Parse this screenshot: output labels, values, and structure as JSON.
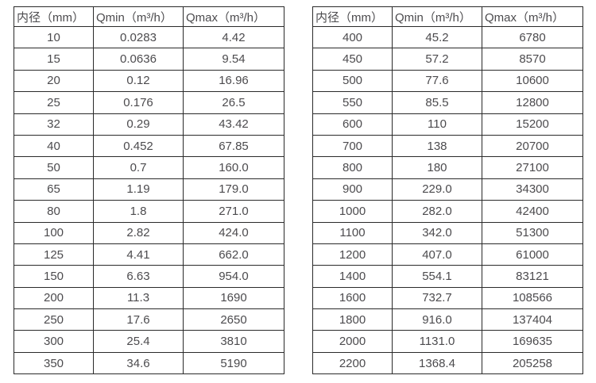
{
  "colors": {
    "background": "#ffffff",
    "border": "#2a2a2a",
    "text": "#4c4b4e"
  },
  "column_names": [
    "diameter",
    "qmin",
    "qmax"
  ],
  "tables": [
    {
      "headers": [
        "内径（mm）",
        "Qmin（m³/h）",
        "Qmax（m³/h）"
      ],
      "rows": [
        [
          "10",
          "0.0283",
          "4.42"
        ],
        [
          "15",
          "0.0636",
          "9.54"
        ],
        [
          "20",
          "0.12",
          "16.96"
        ],
        [
          "25",
          "0.176",
          "26.5"
        ],
        [
          "32",
          "0.29",
          "43.42"
        ],
        [
          "40",
          "0.452",
          "67.85"
        ],
        [
          "50",
          "0.7",
          "160.0"
        ],
        [
          "65",
          "1.19",
          "179.0"
        ],
        [
          "80",
          "1.8",
          "271.0"
        ],
        [
          "100",
          "2.82",
          "424.0"
        ],
        [
          "125",
          "4.41",
          "662.0"
        ],
        [
          "150",
          "6.63",
          "954.0"
        ],
        [
          "200",
          "11.3",
          "1690"
        ],
        [
          "250",
          "17.6",
          "2650"
        ],
        [
          "300",
          "25.4",
          "3810"
        ],
        [
          "350",
          "34.6",
          "5190"
        ]
      ]
    },
    {
      "headers": [
        "内径（mm）",
        "Qmin（m³/h）",
        "Qmax（m³/h）"
      ],
      "rows": [
        [
          "400",
          "45.2",
          "6780"
        ],
        [
          "450",
          "57.2",
          "8570"
        ],
        [
          "500",
          "77.6",
          "10600"
        ],
        [
          "550",
          "85.5",
          "12800"
        ],
        [
          "600",
          "110",
          "15200"
        ],
        [
          "700",
          "138",
          "20700"
        ],
        [
          "800",
          "180",
          "27100"
        ],
        [
          "900",
          "229.0",
          "34300"
        ],
        [
          "1000",
          "282.0",
          "42400"
        ],
        [
          "1100",
          "342.0",
          "51300"
        ],
        [
          "1200",
          "407.0",
          "61000"
        ],
        [
          "1400",
          "554.1",
          "83121"
        ],
        [
          "1600",
          "732.7",
          "108566"
        ],
        [
          "1800",
          "916.0",
          "137404"
        ],
        [
          "2000",
          "1131.0",
          "169635"
        ],
        [
          "2200",
          "1368.4",
          "205258"
        ]
      ]
    }
  ]
}
